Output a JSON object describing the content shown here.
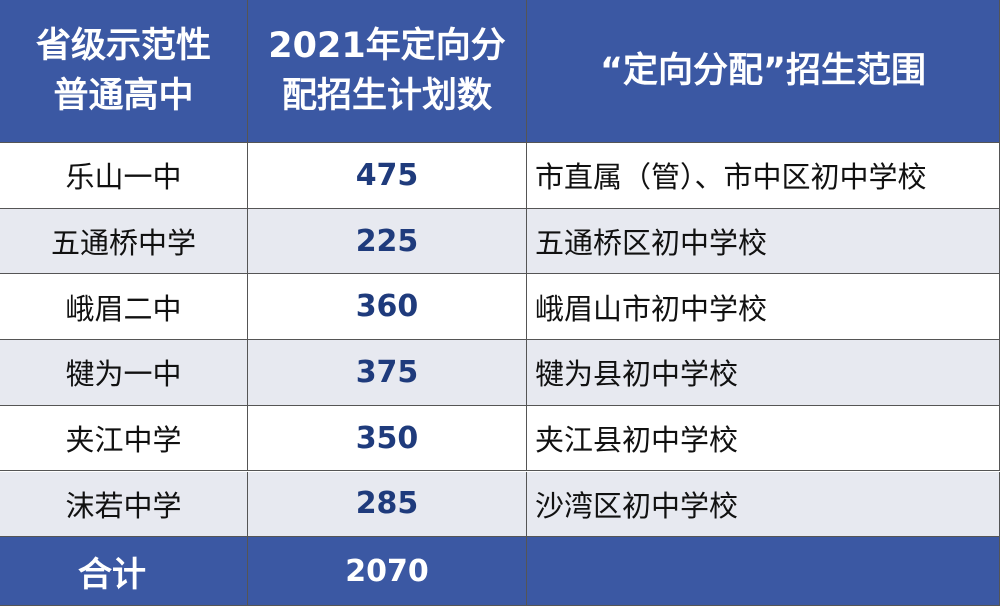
{
  "table": {
    "header": [
      [
        "省级示范性",
        "普通高中"
      ],
      [
        "2021年定向分",
        "配招生计划数"
      ],
      [
        "“定向分配”招生范围"
      ]
    ],
    "rows": [
      [
        "乐山一中",
        475,
        "市直属（管）、市中区初中学校"
      ],
      [
        "五通桥中学",
        225,
        "五通桥区初中学校"
      ],
      [
        "峨眉二中",
        360,
        "峨眉山市初中学校"
      ],
      [
        "犍为一中",
        375,
        "犍为县初中学校"
      ],
      [
        "夹江中学",
        350,
        "夹江县初中学校"
      ],
      [
        "沫若中学",
        285,
        "沙湾区初中学校"
      ]
    ],
    "total": [
      "合计",
      2070
    ]
  }
}
